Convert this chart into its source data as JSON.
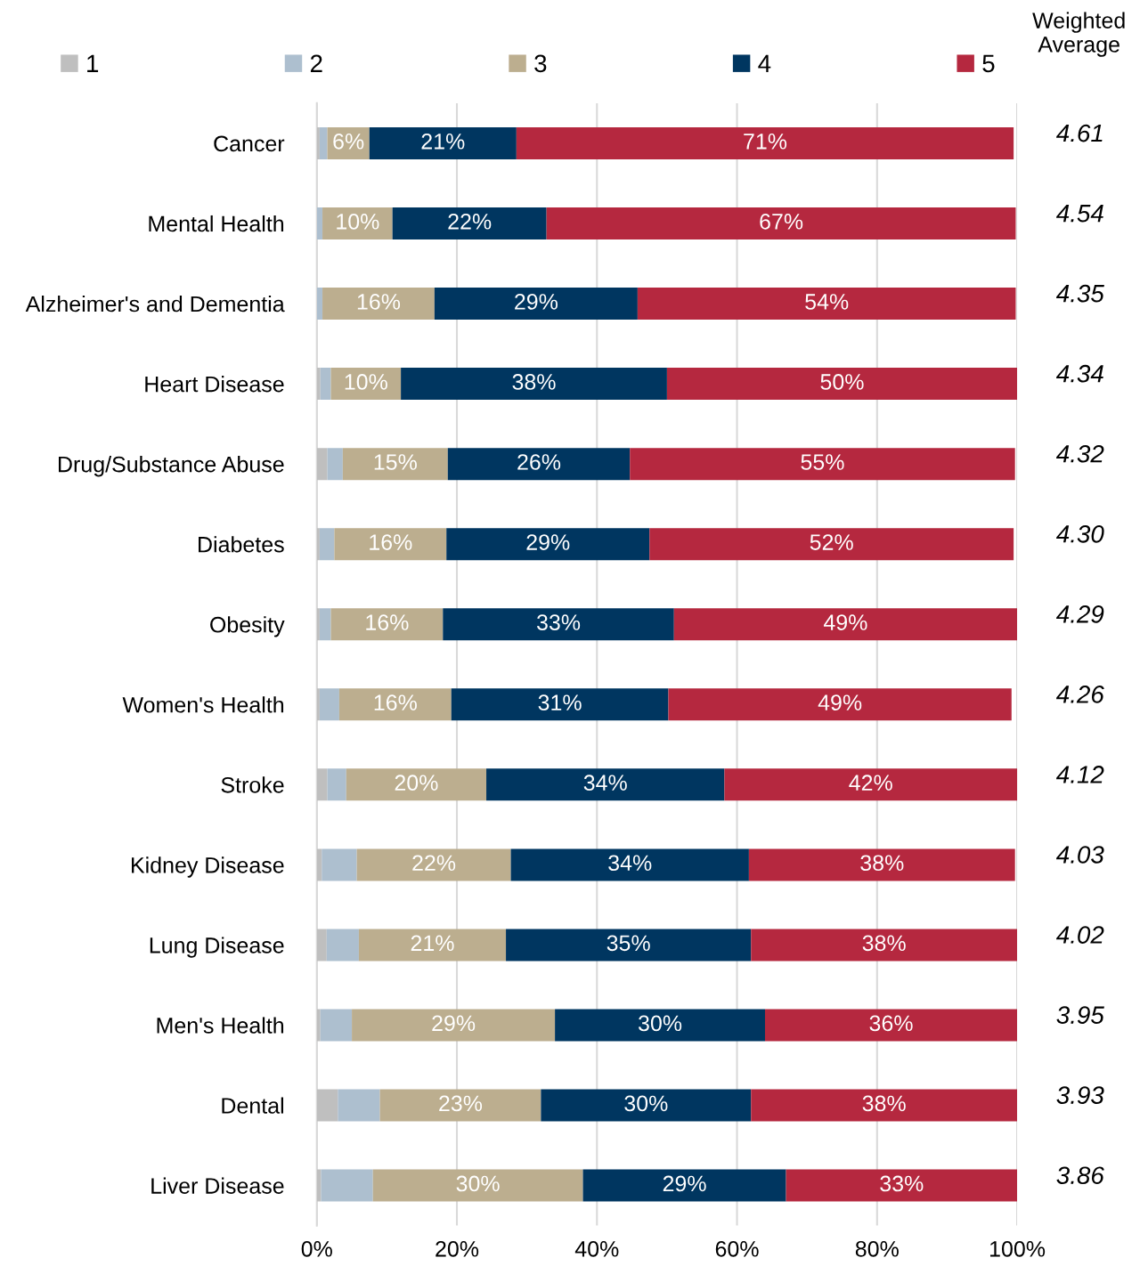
{
  "chart_data": {
    "type": "bar",
    "orientation": "horizontal",
    "stacked": true,
    "categories": [
      "Cancer",
      "Mental Health",
      "Alzheimer's and Dementia",
      "Heart Disease",
      "Drug/Substance Abuse",
      "Diabetes",
      "Obesity",
      "Women's Health",
      "Stroke",
      "Kidney Disease",
      "Lung Disease",
      "Men's Health",
      "Dental",
      "Liver Disease"
    ],
    "series": [
      {
        "name": "1",
        "color": "#bfbfbf",
        "values": [
          0.4,
          null,
          null,
          0.5,
          1.5,
          0.4,
          0.4,
          0.4,
          1.5,
          0.7,
          1.4,
          0.5,
          3.0,
          0.6
        ]
      },
      {
        "name": "2",
        "color": "#adbfcf",
        "values": [
          1.1,
          0.8,
          0.8,
          1.5,
          2.2,
          2.1,
          1.6,
          2.8,
          2.7,
          5.0,
          4.6,
          4.5,
          6.0,
          7.4
        ]
      },
      {
        "name": "3",
        "color": "#bcae8f",
        "values": [
          6,
          10,
          16,
          10,
          15,
          16,
          16,
          16,
          20,
          22,
          21,
          29,
          23,
          30
        ],
        "value_labels": [
          "6%",
          "10%",
          "16%",
          "10%",
          "15%",
          "16%",
          "16%",
          "16%",
          "20%",
          "22%",
          "21%",
          "29%",
          "23%",
          "30%"
        ]
      },
      {
        "name": "4",
        "color": "#003660",
        "values": [
          21,
          22,
          29,
          38,
          26,
          29,
          33,
          31,
          34,
          34,
          35,
          30,
          30,
          29
        ],
        "value_labels": [
          "21%",
          "22%",
          "29%",
          "38%",
          "26%",
          "29%",
          "33%",
          "31%",
          "34%",
          "34%",
          "35%",
          "30%",
          "30%",
          "29%"
        ]
      },
      {
        "name": "5",
        "color": "#b5283f",
        "values": [
          71,
          67,
          54,
          50,
          55,
          52,
          49,
          49,
          42,
          38,
          38,
          36,
          38,
          33
        ],
        "value_labels": [
          "71%",
          "67%",
          "54%",
          "50%",
          "55%",
          "52%",
          "49%",
          "49%",
          "42%",
          "38%",
          "38%",
          "36%",
          "38%",
          "33%"
        ]
      }
    ],
    "xlim": [
      0,
      100
    ],
    "xticks": [
      {
        "value": 0,
        "label": "0%"
      },
      {
        "value": 20,
        "label": "20%"
      },
      {
        "value": 40,
        "label": "40%"
      },
      {
        "value": 60,
        "label": "60%"
      },
      {
        "value": 80,
        "label": "80%"
      },
      {
        "value": 100,
        "label": "100%"
      }
    ],
    "grid": "x",
    "legend": "top",
    "annotations": [
      "Weighted\nAverage",
      "4.61",
      "4.54",
      "4.35",
      "4.34",
      "4.32",
      "4.30",
      "4.29",
      "4.26",
      "4.12",
      "4.03",
      "4.02",
      "3.95",
      "3.93",
      "3.86"
    ]
  }
}
